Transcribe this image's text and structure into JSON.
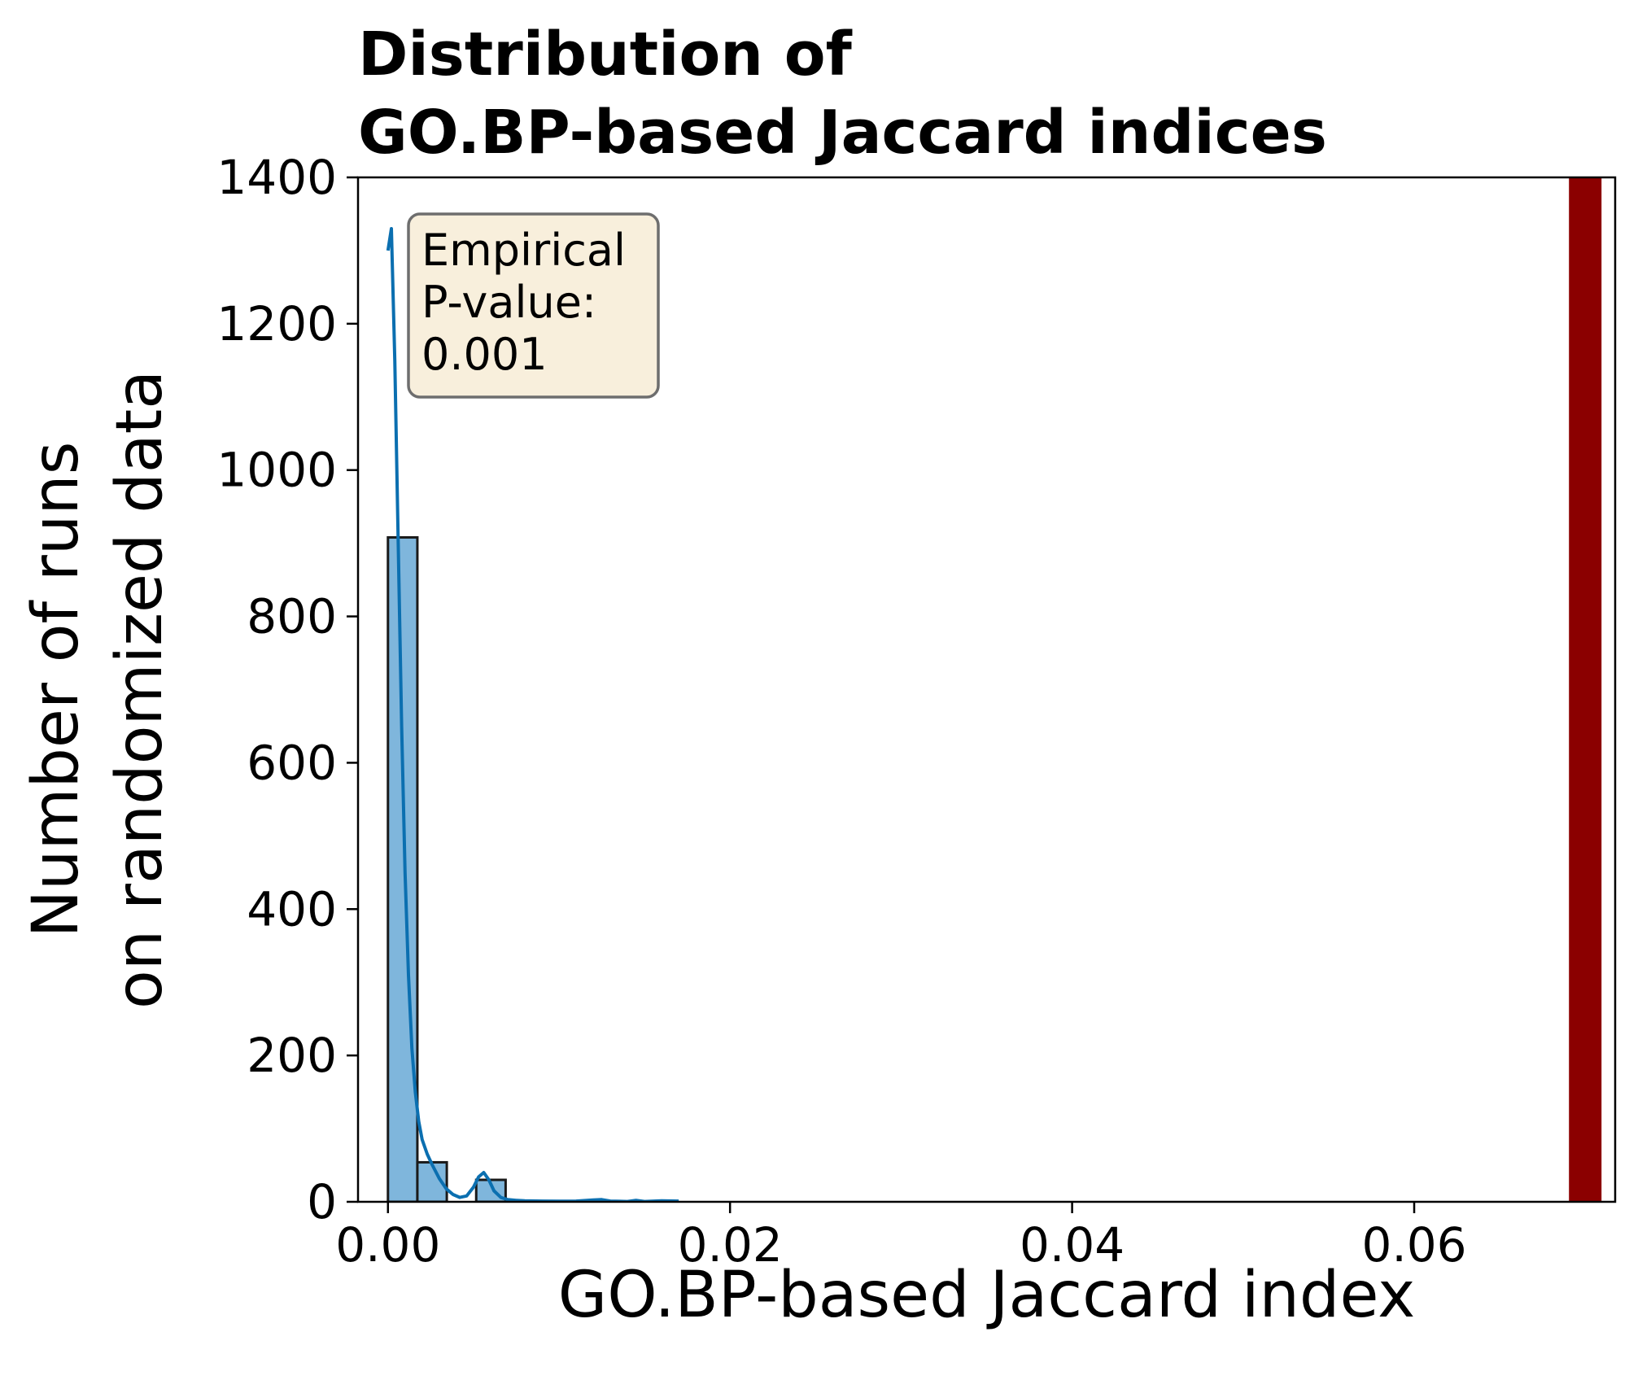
{
  "chart_data": {
    "type": "bar",
    "title": "Distribution of\nGO.BP-based Jaccard indices",
    "xlabel": "GO.BP-based Jaccard index",
    "ylabel": "Number of runs\non randomized data",
    "xlim": [
      -0.00175,
      0.07175
    ],
    "ylim": [
      0,
      1400
    ],
    "xticks": [
      0.0,
      0.02,
      0.04,
      0.06
    ],
    "xtick_labels": [
      "0.00",
      "0.02",
      "0.04",
      "0.06"
    ],
    "yticks": [
      0,
      200,
      400,
      600,
      800,
      1000,
      1200,
      1400
    ],
    "ytick_labels": [
      "0",
      "200",
      "400",
      "600",
      "800",
      "1000",
      "1200",
      "1400"
    ],
    "bin_width": 0.00172,
    "bins": [
      {
        "x0": 0.0,
        "count": 908
      },
      {
        "x0": 0.00172,
        "count": 54
      },
      {
        "x0": 0.00344,
        "count": 0
      },
      {
        "x0": 0.00516,
        "count": 30
      }
    ],
    "bar_color": "#7fb6dc",
    "bar_edge_color": "#1a1a1a",
    "kde": {
      "color": "#0b6fb0",
      "x": [
        0.0,
        0.0002,
        0.0004,
        0.0006,
        0.0008,
        0.001,
        0.0012,
        0.0014,
        0.0016,
        0.0018,
        0.002,
        0.0023,
        0.0026,
        0.003,
        0.0034,
        0.0038,
        0.0042,
        0.0046,
        0.005,
        0.0053,
        0.0056,
        0.0059,
        0.0062,
        0.0066,
        0.007,
        0.0075,
        0.008,
        0.009,
        0.01,
        0.011,
        0.012,
        0.0125,
        0.013,
        0.014,
        0.0145,
        0.015,
        0.016,
        0.017
      ],
      "y": [
        1300,
        1330,
        1150,
        900,
        650,
        450,
        310,
        210,
        150,
        110,
        85,
        65,
        50,
        32,
        18,
        10,
        6,
        8,
        20,
        34,
        40,
        30,
        15,
        6,
        3,
        2,
        1.5,
        1,
        0.8,
        1,
        2.5,
        3,
        1,
        0.5,
        2,
        0.5,
        1.5,
        1
      ]
    },
    "observed_line": {
      "x": 0.07,
      "color": "#8b0000"
    },
    "annotation": {
      "lines": [
        "Empirical",
        "P-value:",
        "0.001"
      ],
      "box_facecolor": "#f7ecd6",
      "box_edgecolor": "#6e6e6e"
    },
    "grid": false,
    "legend": "none"
  }
}
